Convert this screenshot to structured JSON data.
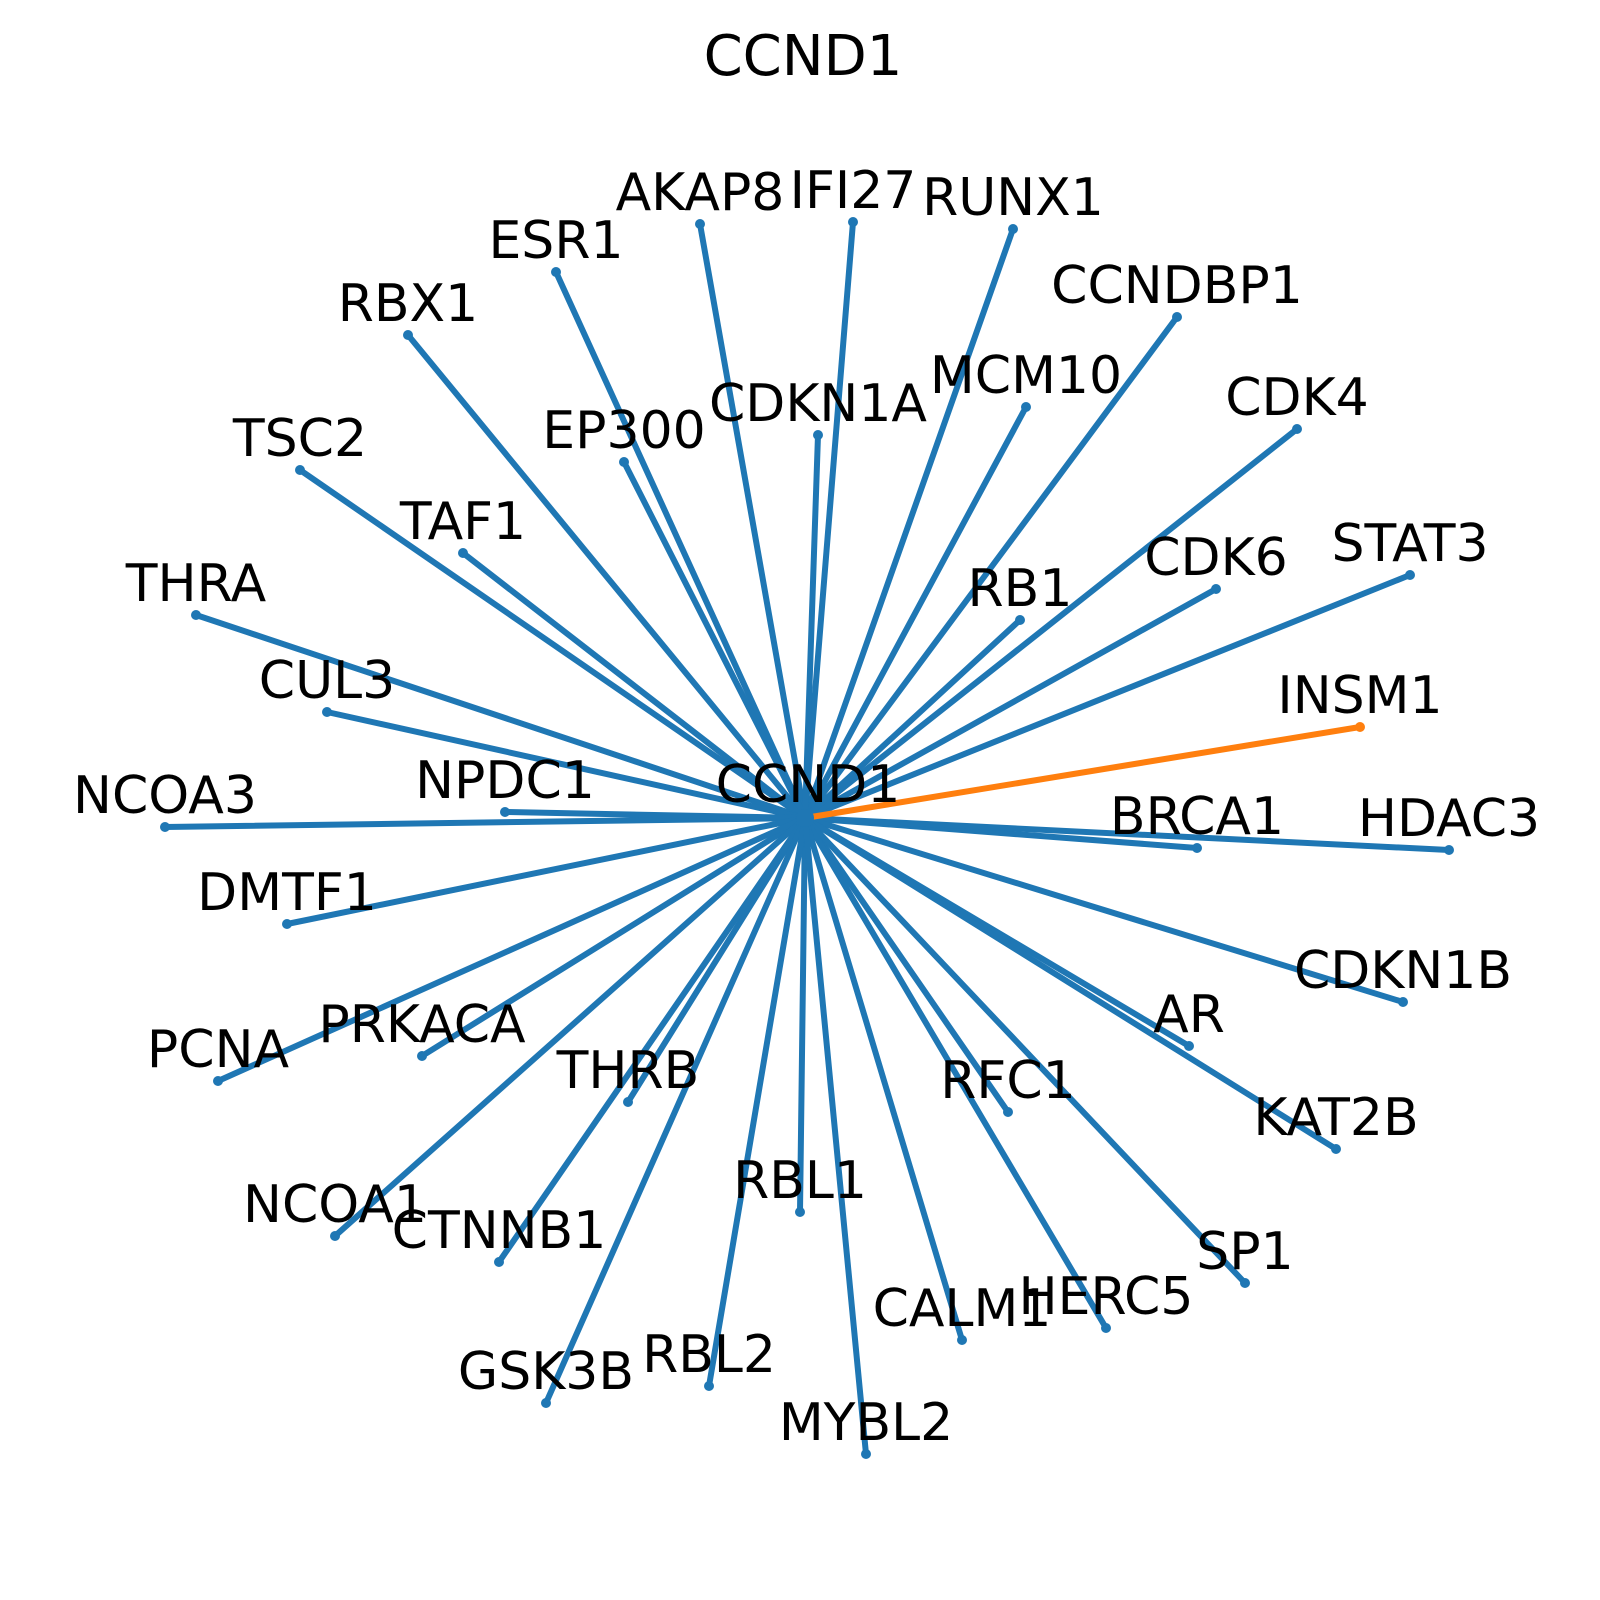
{
  "title": "CCND1",
  "center": {
    "id": "CCND1",
    "label": "CCND1"
  },
  "colors": {
    "edge_default": "#1f77b4",
    "edge_highlight": "#ff7f0e",
    "text": "#000000",
    "background": "#ffffff"
  },
  "nodes": [
    {
      "id": "AKAP8",
      "label": "AKAP8"
    },
    {
      "id": "IFI27",
      "label": "IFI27"
    },
    {
      "id": "RUNX1",
      "label": "RUNX1"
    },
    {
      "id": "ESR1",
      "label": "ESR1"
    },
    {
      "id": "CCNDBP1",
      "label": "CCNDBP1"
    },
    {
      "id": "RBX1",
      "label": "RBX1"
    },
    {
      "id": "MCM10",
      "label": "MCM10"
    },
    {
      "id": "CDKN1A",
      "label": "CDKN1A"
    },
    {
      "id": "CDK4",
      "label": "CDK4"
    },
    {
      "id": "EP300",
      "label": "EP300"
    },
    {
      "id": "TSC2",
      "label": "TSC2"
    },
    {
      "id": "TAF1",
      "label": "TAF1"
    },
    {
      "id": "STAT3",
      "label": "STAT3"
    },
    {
      "id": "CDK6",
      "label": "CDK6"
    },
    {
      "id": "THRA",
      "label": "THRA"
    },
    {
      "id": "RB1",
      "label": "RB1"
    },
    {
      "id": "INSM1",
      "label": "INSM1",
      "highlight": true
    },
    {
      "id": "CUL3",
      "label": "CUL3"
    },
    {
      "id": "NCOA3",
      "label": "NCOA3"
    },
    {
      "id": "NPDC1",
      "label": "NPDC1"
    },
    {
      "id": "BRCA1",
      "label": "BRCA1"
    },
    {
      "id": "HDAC3",
      "label": "HDAC3"
    },
    {
      "id": "DMTF1",
      "label": "DMTF1"
    },
    {
      "id": "CDKN1B",
      "label": "CDKN1B"
    },
    {
      "id": "PRKACA",
      "label": "PRKACA"
    },
    {
      "id": "PCNA",
      "label": "PCNA"
    },
    {
      "id": "AR",
      "label": "AR"
    },
    {
      "id": "THRB",
      "label": "THRB"
    },
    {
      "id": "RFC1",
      "label": "RFC1"
    },
    {
      "id": "KAT2B",
      "label": "KAT2B"
    },
    {
      "id": "RBL1",
      "label": "RBL1"
    },
    {
      "id": "NCOA1",
      "label": "NCOA1"
    },
    {
      "id": "CTNNB1",
      "label": "CTNNB1"
    },
    {
      "id": "SP1",
      "label": "SP1"
    },
    {
      "id": "HERC5",
      "label": "HERC5"
    },
    {
      "id": "CALM1",
      "label": "CALM1"
    },
    {
      "id": "GSK3B",
      "label": "GSK3B"
    },
    {
      "id": "RBL2",
      "label": "RBL2"
    },
    {
      "id": "MYBL2",
      "label": "MYBL2"
    }
  ]
}
